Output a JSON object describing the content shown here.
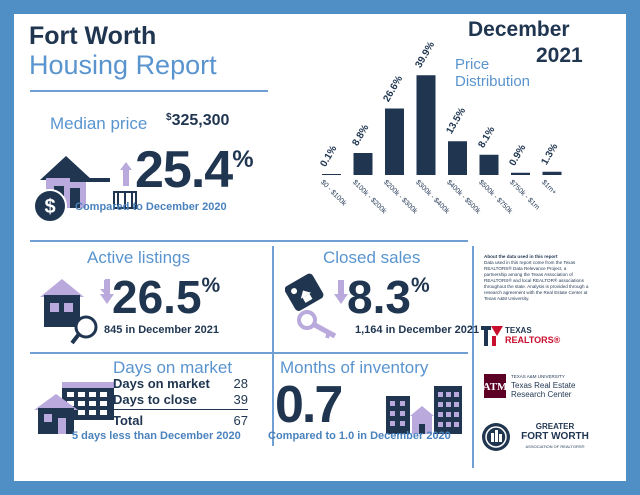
{
  "header": {
    "city": "Fort Worth",
    "report": "Housing Report",
    "month": "December",
    "year": "2021"
  },
  "distribution": {
    "title_line1": "Price",
    "title_line2": "Distribution"
  },
  "chart_data": {
    "type": "bar",
    "title": "Price Distribution",
    "categories": [
      "$0 - $100k",
      "$100k - $200k",
      "$200k - $300k",
      "$300k - $400k",
      "$400k - $500k",
      "$500k - $750k",
      "$750k - $1m",
      "$1m+"
    ],
    "values": [
      0.1,
      8.8,
      26.6,
      39.9,
      13.5,
      8.1,
      0.9,
      1.3
    ],
    "labels": [
      "0.1%",
      "8.8%",
      "26.6%",
      "39.9%",
      "13.5%",
      "8.1%",
      "0.9%",
      "1.3%"
    ],
    "ylim": [
      0,
      40
    ],
    "unit": "%",
    "color": "#1f3550"
  },
  "median": {
    "label": "Median price",
    "dollar": "$",
    "value": "325,300",
    "change": "25.4",
    "pct": "%",
    "compare": "Compared to December 2020"
  },
  "active": {
    "label": "Active listings",
    "change": "26.5",
    "pct": "%",
    "sub": "845 in December 2021"
  },
  "closed": {
    "label": "Closed sales",
    "change": "8.3",
    "pct": "%",
    "sub": "1,164 in December 2021"
  },
  "days": {
    "label": "Days on market",
    "rows": [
      {
        "label": "Days on market",
        "value": "28"
      },
      {
        "label": "Days to close",
        "value": "39"
      },
      {
        "label": "Total",
        "value": "67"
      }
    ],
    "sub": "5 days less than December 2020"
  },
  "months": {
    "label": "Months of inventory",
    "value": "0.7",
    "sub": "Compared to 1.0 in December 2020"
  },
  "note": {
    "heading": "About the data used in this report",
    "body": "Data used in this report come from the Texas REALTORS® Data Relevance Project, a partnership among the Texas Association of REALTORS® and local REALTOR® associations throughout the state. Analysis is provided through a research agreement with the Real Estate Center at Texas A&M University."
  },
  "logos": {
    "texas_realtors_line1": "TEXAS",
    "texas_realtors_line2": "REALTORS®",
    "tamu_line1": "TEXAS A&M UNIVERSITY",
    "tamu_line2": "Texas Real Estate",
    "tamu_line3": "Research Center",
    "gfw_line1": "GREATER",
    "gfw_line2": "FORT WORTH",
    "gfw_line3": "ASSOCIATION OF REALTORS®"
  },
  "colors": {
    "navy": "#1f3550",
    "accent": "#5a94cf",
    "frame": "#4f8fc6",
    "lavender": "#b9a9dc"
  }
}
